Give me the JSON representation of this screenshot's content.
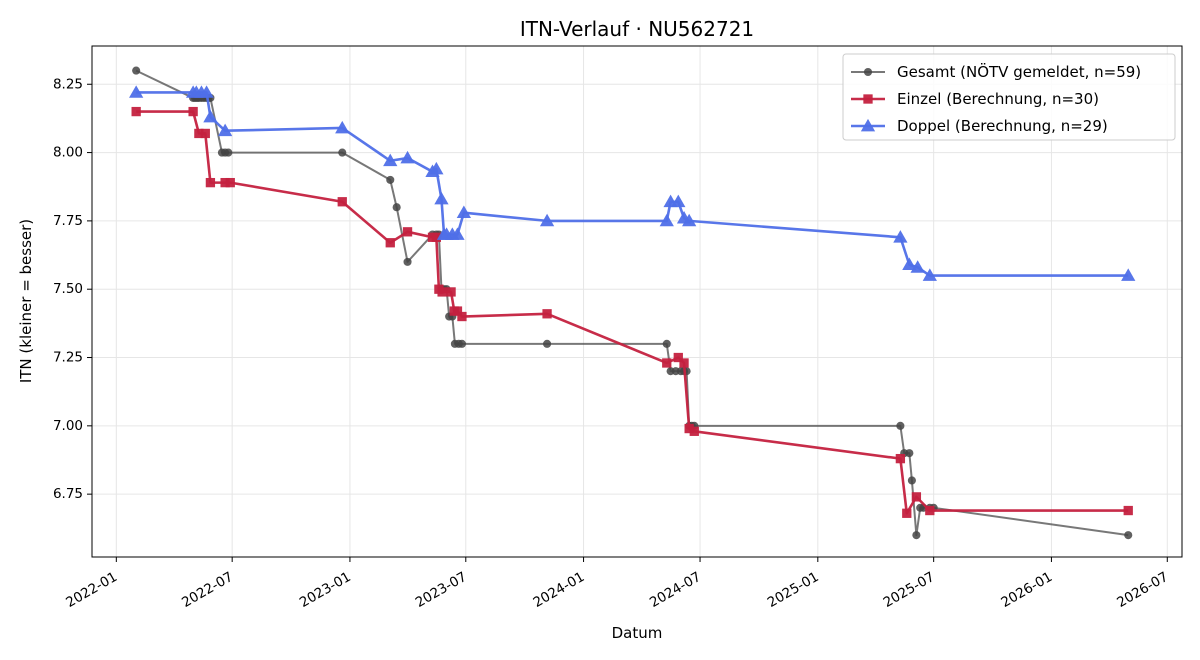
{
  "chart_data": {
    "type": "line",
    "title": "ITN-Verlauf · NU562721",
    "xlabel": "Datum",
    "ylabel": "ITN  (kleiner = besser)",
    "x_type": "date",
    "xlim": [
      "2021-11-24",
      "2026-07-24"
    ],
    "ylim": [
      6.52,
      8.39
    ],
    "x_ticks": [
      "2022-01-01",
      "2022-07-01",
      "2023-01-01",
      "2023-07-01",
      "2024-01-01",
      "2024-07-01",
      "2025-01-01",
      "2025-07-01",
      "2026-01-01",
      "2026-07-01"
    ],
    "x_tick_labels": [
      "2022-01",
      "2022-07",
      "2023-01",
      "2023-07",
      "2024-01",
      "2024-07",
      "2025-01",
      "2025-07",
      "2026-01",
      "2026-07"
    ],
    "y_ticks": [
      6.75,
      7.0,
      7.25,
      7.5,
      7.75,
      8.0,
      8.25
    ],
    "y_tick_labels": [
      "6.75",
      "7.00",
      "7.25",
      "7.50",
      "7.75",
      "8.00",
      "8.25"
    ],
    "grid": true,
    "legend_position": "top-right",
    "series": [
      {
        "name": "Gesamt (NÖTV gemeldet, n=59)",
        "color": "#444444",
        "marker": "circle",
        "points": [
          [
            "2022-02-01",
            8.3
          ],
          [
            "2022-05-01",
            8.2
          ],
          [
            "2022-05-04",
            8.2
          ],
          [
            "2022-05-07",
            8.2
          ],
          [
            "2022-05-10",
            8.2
          ],
          [
            "2022-05-14",
            8.2
          ],
          [
            "2022-05-18",
            8.2
          ],
          [
            "2022-05-22",
            8.2
          ],
          [
            "2022-05-25",
            8.2
          ],
          [
            "2022-05-28",
            8.2
          ],
          [
            "2022-06-15",
            8.0
          ],
          [
            "2022-06-20",
            8.0
          ],
          [
            "2022-06-25",
            8.0
          ],
          [
            "2022-12-20",
            8.0
          ],
          [
            "2023-03-05",
            7.9
          ],
          [
            "2023-03-15",
            7.8
          ],
          [
            "2023-04-01",
            7.6
          ],
          [
            "2023-05-10",
            7.7
          ],
          [
            "2023-05-16",
            7.7
          ],
          [
            "2023-05-20",
            7.7
          ],
          [
            "2023-05-24",
            7.5
          ],
          [
            "2023-05-28",
            7.5
          ],
          [
            "2023-06-01",
            7.5
          ],
          [
            "2023-06-05",
            7.4
          ],
          [
            "2023-06-10",
            7.4
          ],
          [
            "2023-06-14",
            7.3
          ],
          [
            "2023-06-20",
            7.3
          ],
          [
            "2023-06-25",
            7.3
          ],
          [
            "2023-11-05",
            7.3
          ],
          [
            "2024-05-10",
            7.3
          ],
          [
            "2024-05-16",
            7.2
          ],
          [
            "2024-05-24",
            7.2
          ],
          [
            "2024-06-01",
            7.2
          ],
          [
            "2024-06-06",
            7.2
          ],
          [
            "2024-06-10",
            7.2
          ],
          [
            "2024-06-14",
            7.0
          ],
          [
            "2024-06-18",
            7.0
          ],
          [
            "2024-06-22",
            7.0
          ],
          [
            "2025-05-10",
            7.0
          ],
          [
            "2025-05-16",
            6.9
          ],
          [
            "2025-05-24",
            6.9
          ],
          [
            "2025-05-28",
            6.8
          ],
          [
            "2025-06-04",
            6.6
          ],
          [
            "2025-06-10",
            6.7
          ],
          [
            "2025-06-15",
            6.7
          ],
          [
            "2025-06-25",
            6.7
          ],
          [
            "2025-07-01",
            6.7
          ],
          [
            "2026-05-01",
            6.6
          ]
        ]
      },
      {
        "name": "Einzel (Berechnung, n=30)",
        "color": "#c4213f",
        "marker": "square",
        "points": [
          [
            "2022-02-01",
            8.15
          ],
          [
            "2022-05-01",
            8.15
          ],
          [
            "2022-05-10",
            8.07
          ],
          [
            "2022-05-20",
            8.07
          ],
          [
            "2022-05-28",
            7.89
          ],
          [
            "2022-06-20",
            7.89
          ],
          [
            "2022-06-28",
            7.89
          ],
          [
            "2022-12-20",
            7.82
          ],
          [
            "2023-03-05",
            7.67
          ],
          [
            "2023-04-01",
            7.71
          ],
          [
            "2023-05-10",
            7.69
          ],
          [
            "2023-05-16",
            7.69
          ],
          [
            "2023-05-20",
            7.5
          ],
          [
            "2023-05-25",
            7.49
          ],
          [
            "2023-06-08",
            7.49
          ],
          [
            "2023-06-13",
            7.42
          ],
          [
            "2023-06-18",
            7.42
          ],
          [
            "2023-06-25",
            7.4
          ],
          [
            "2023-11-05",
            7.41
          ],
          [
            "2024-05-10",
            7.23
          ],
          [
            "2024-05-28",
            7.25
          ],
          [
            "2024-06-06",
            7.23
          ],
          [
            "2024-06-14",
            6.99
          ],
          [
            "2024-06-22",
            6.98
          ],
          [
            "2025-05-10",
            6.88
          ],
          [
            "2025-05-20",
            6.68
          ],
          [
            "2025-06-04",
            6.74
          ],
          [
            "2025-06-25",
            6.69
          ],
          [
            "2026-05-01",
            6.69
          ]
        ]
      },
      {
        "name": "Doppel (Berechnung, n=29)",
        "color": "#4f6fe8",
        "marker": "triangle",
        "points": [
          [
            "2022-02-01",
            8.22
          ],
          [
            "2022-05-01",
            8.22
          ],
          [
            "2022-05-06",
            8.22
          ],
          [
            "2022-05-14",
            8.22
          ],
          [
            "2022-05-22",
            8.22
          ],
          [
            "2022-05-28",
            8.13
          ],
          [
            "2022-06-20",
            8.08
          ],
          [
            "2022-12-20",
            8.09
          ],
          [
            "2023-03-05",
            7.97
          ],
          [
            "2023-04-01",
            7.98
          ],
          [
            "2023-05-10",
            7.93
          ],
          [
            "2023-05-16",
            7.94
          ],
          [
            "2023-05-24",
            7.83
          ],
          [
            "2023-05-28",
            7.7
          ],
          [
            "2023-06-01",
            7.7
          ],
          [
            "2023-06-10",
            7.7
          ],
          [
            "2023-06-18",
            7.7
          ],
          [
            "2023-06-28",
            7.78
          ],
          [
            "2023-11-05",
            7.75
          ],
          [
            "2024-05-10",
            7.75
          ],
          [
            "2024-05-16",
            7.82
          ],
          [
            "2024-05-28",
            7.82
          ],
          [
            "2024-06-06",
            7.76
          ],
          [
            "2024-06-14",
            7.75
          ],
          [
            "2025-05-10",
            7.69
          ],
          [
            "2025-05-24",
            7.59
          ],
          [
            "2025-06-06",
            7.58
          ],
          [
            "2025-06-25",
            7.55
          ],
          [
            "2026-05-01",
            7.55
          ]
        ]
      }
    ]
  }
}
